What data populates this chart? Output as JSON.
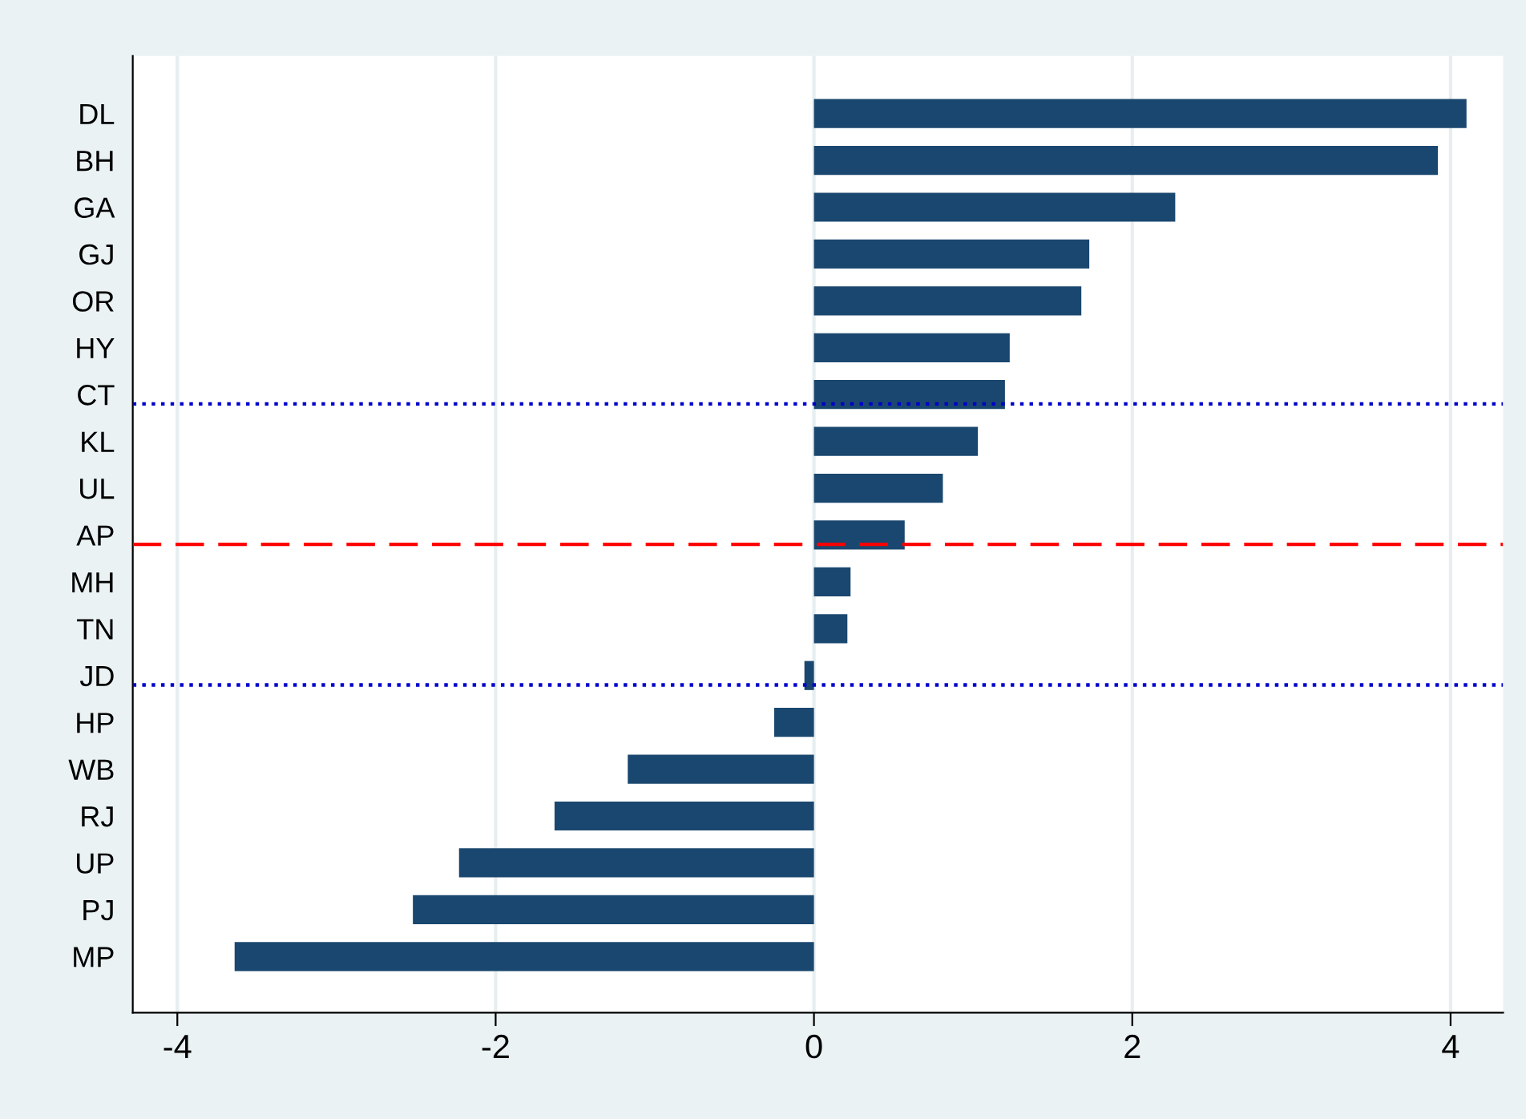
{
  "chart_data": {
    "type": "bar",
    "orientation": "horizontal",
    "categories": [
      "DL",
      "BH",
      "GA",
      "GJ",
      "OR",
      "HY",
      "CT",
      "KL",
      "UL",
      "AP",
      "MH",
      "TN",
      "JD",
      "HP",
      "WB",
      "RJ",
      "UP",
      "PJ",
      "MP"
    ],
    "values": [
      4.1,
      3.92,
      2.27,
      1.73,
      1.68,
      1.23,
      1.2,
      1.03,
      0.81,
      0.57,
      0.23,
      0.21,
      -0.06,
      -0.25,
      -1.17,
      -1.63,
      -2.23,
      -2.52,
      -3.64
    ],
    "color": "#1a476f",
    "xlim": [
      -4.28,
      4.33
    ],
    "xticks": [
      -4,
      -2,
      0,
      2,
      4
    ],
    "grid": "x",
    "legend": false,
    "ref_lines": [
      {
        "axis": "y",
        "value": "CT",
        "color": "#0000cc",
        "line_style": "dotted"
      },
      {
        "axis": "y",
        "value": "AP",
        "color": "#ff0000",
        "line_style": "dashed"
      },
      {
        "axis": "y",
        "value": "JD",
        "color": "#0000cc",
        "line_style": "dotted"
      }
    ]
  }
}
